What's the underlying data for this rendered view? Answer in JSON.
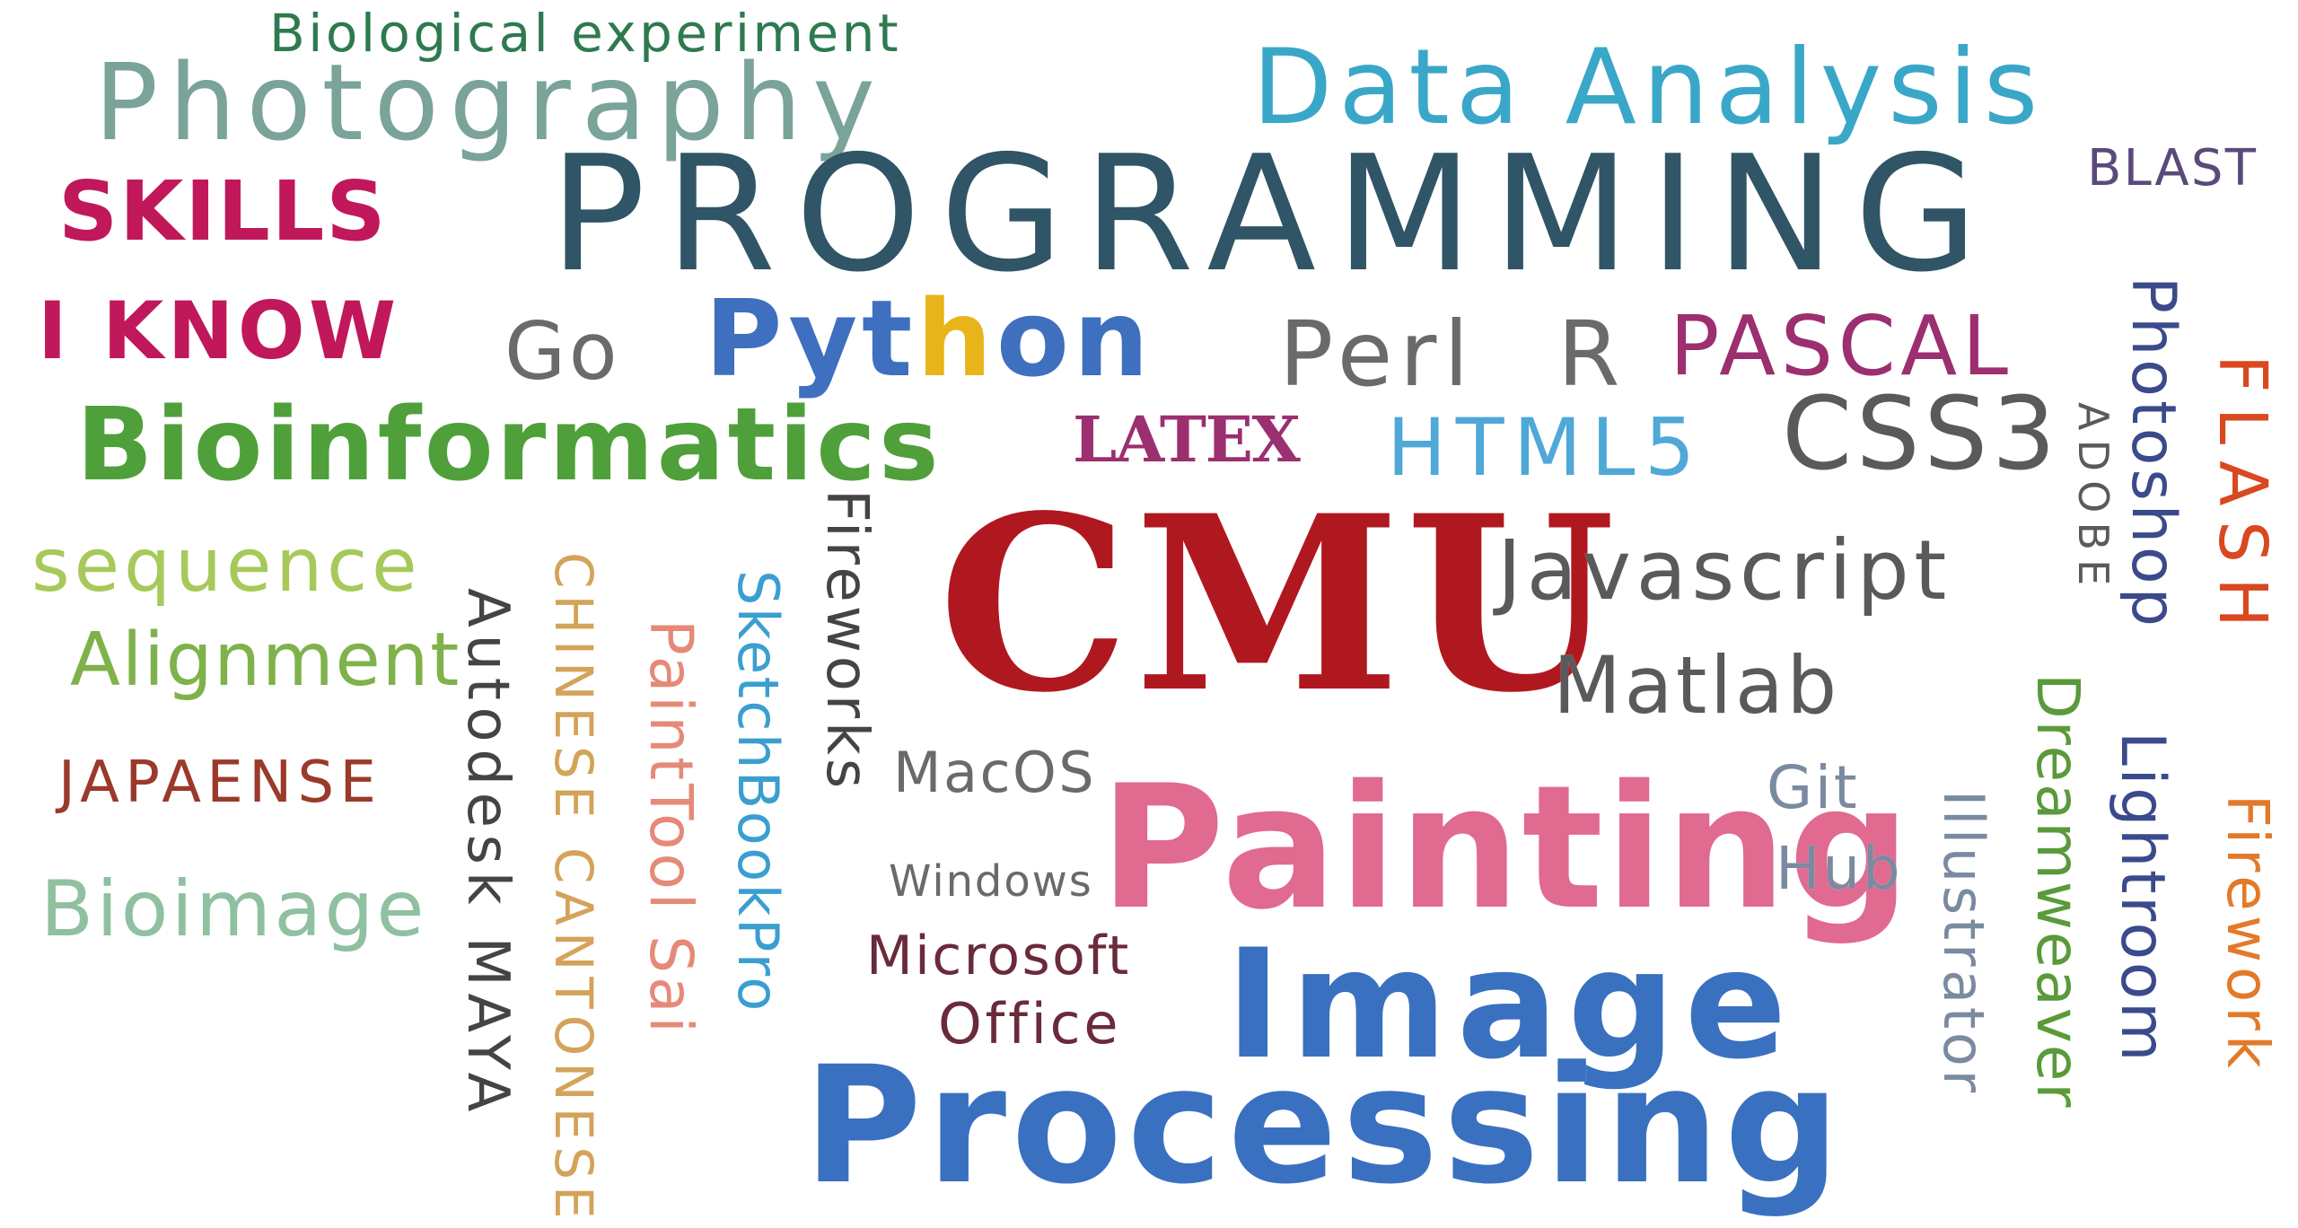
{
  "words": {
    "biological_experiment": "Biological experiment",
    "photography": "Photography",
    "data_analysis": "Data Analysis",
    "programming": "PROGRAMMING",
    "blast": "BLAST",
    "skills": "SKILLS",
    "i_know": "I KNOW",
    "go": "Go",
    "python_pyt": "Pyt",
    "python_h": "h",
    "python_on": "on",
    "perl": "Perl",
    "r": "R",
    "pascal": "PASCAL",
    "bioinformatics": "Bioinformatics",
    "latex": "LATEX",
    "html5": "HTML5",
    "css3": "CSS3",
    "photoshop": "Photoshop",
    "flash": "FLASH",
    "adobe": "ADOBE",
    "sequence": "sequence",
    "alignment": "Alignment",
    "japaense": "JAPAENSE",
    "bioimage": "Bioimage",
    "autodesk_maya": "Autodesk MAYA",
    "chinese_cantonese": "CHINESE CANTONESE",
    "painttool_sai": "PaintTool Sai",
    "sketchbookpro": "SketchBookPro",
    "fireworks": "Fireworks",
    "cmu": "CMU",
    "javascript": "Javascript",
    "matlab": "Matlab",
    "macos": "MacOS",
    "windows": "Windows",
    "microsoft": "Microsoft",
    "office": "Office",
    "painting": "Painting",
    "git": "Git",
    "hub": "Hub",
    "illustrator": "Illustrator",
    "dreamweaver": "Dreamweaver",
    "lightroom": "Lightroom",
    "firework": "Firework",
    "image": "Image",
    "processing": "Processing"
  },
  "colors": {
    "dark_green": "#2e7a4f",
    "sage": "#7aa39a",
    "sky_blue": "#3aa7c9",
    "slate_navy": "#2f5566",
    "purple": "#5a4a7a",
    "magenta": "#c0185a",
    "gray": "#6a6a6a",
    "royal_blue": "#3f6fbf",
    "yellow": "#e8b41a",
    "plum": "#9b2f6f",
    "leaf_green": "#4fa03a",
    "light_blue": "#4fa8d8",
    "dark_gray": "#5a5a5a",
    "orange_red": "#d9481f",
    "lime": "#a7c95a",
    "olive_green": "#7fb24a",
    "brick": "#9a3a2a",
    "mint": "#8fc0a0",
    "charcoal": "#444444",
    "tan": "#d4a35a",
    "salmon": "#e58a78",
    "cyan": "#3a9fd0",
    "crimson": "#b01820",
    "pink": "#e06a90",
    "maroon": "#6a2a3a",
    "steel": "#7a8aa0",
    "green": "#5a9a3a",
    "navy": "#3a4a8a",
    "orange": "#e27a2a",
    "blue": "#3a70c0"
  }
}
